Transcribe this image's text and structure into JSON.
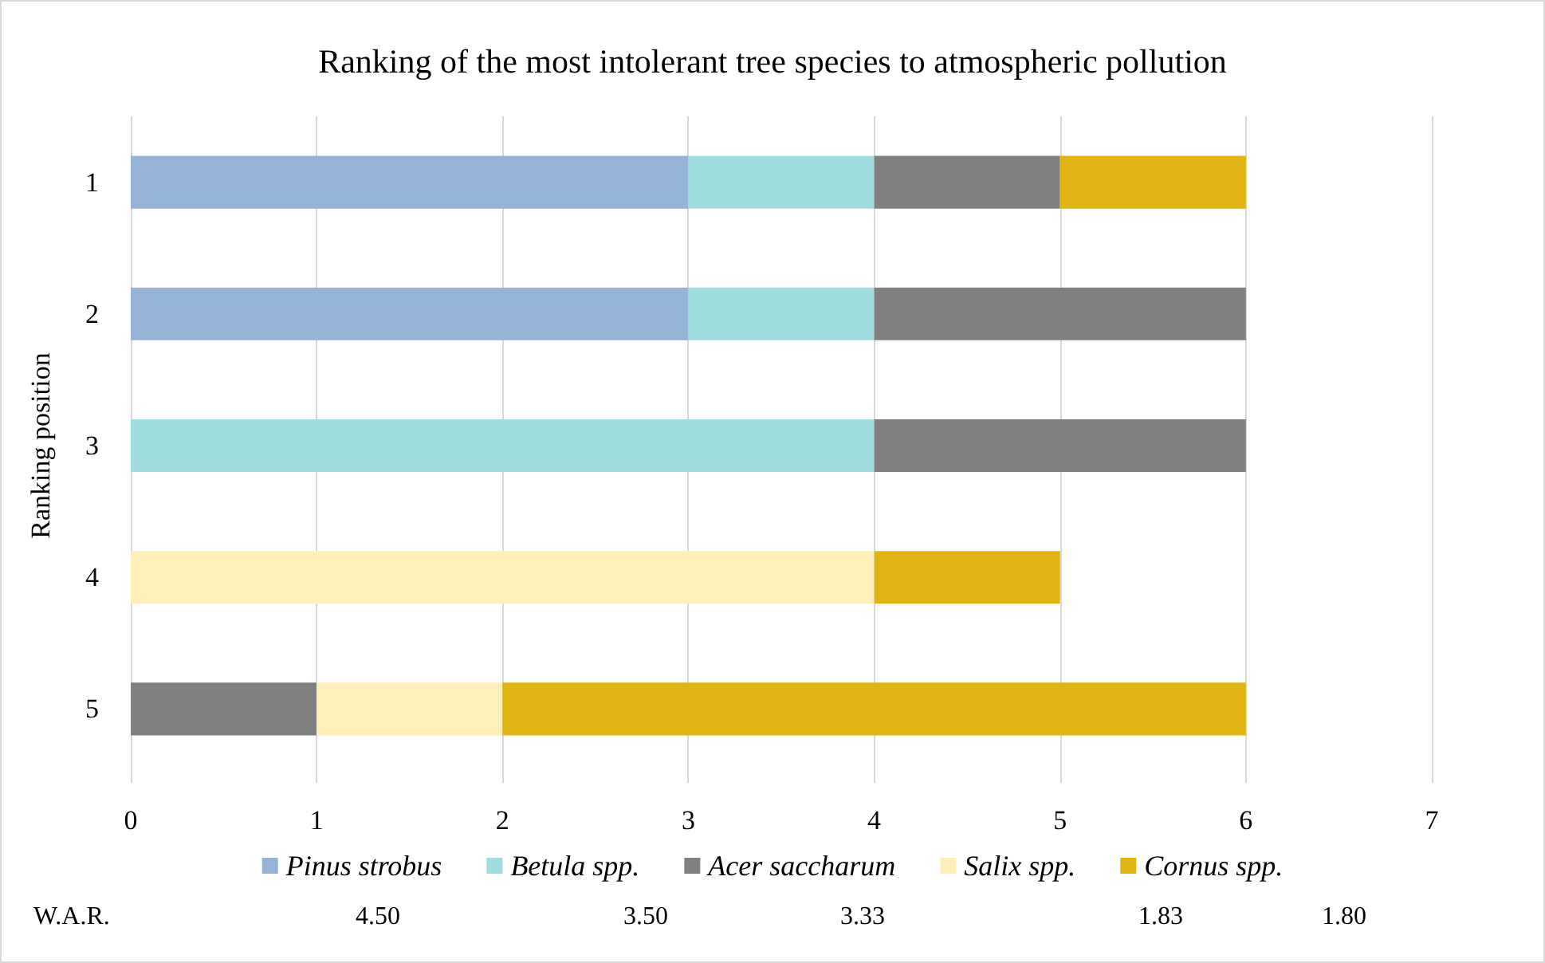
{
  "chart_data": {
    "type": "bar",
    "orientation": "horizontal",
    "stacked": true,
    "title": "Ranking of the most intolerant tree species to atmospheric pollution",
    "ylabel": "Ranking position",
    "categories": [
      "1",
      "2",
      "3",
      "4",
      "5"
    ],
    "series": [
      {
        "name": "Pinus strobus",
        "color": "#95b3d7",
        "values": [
          3,
          3,
          null,
          null,
          null
        ]
      },
      {
        "name": "Betula spp.",
        "color": "#a0dde0",
        "values": [
          1,
          1,
          4,
          null,
          null
        ]
      },
      {
        "name": "Acer saccharum",
        "color": "#808080",
        "values": [
          1,
          2,
          2,
          null,
          1
        ]
      },
      {
        "name": "Salix spp.",
        "color": "#fff0bb",
        "values": [
          null,
          null,
          null,
          4,
          1
        ]
      },
      {
        "name": "Cornus spp.",
        "color": "#e0b412",
        "values": [
          1,
          null,
          null,
          1,
          4
        ]
      }
    ],
    "xlim": [
      0,
      7
    ],
    "xticks": [
      0,
      1,
      2,
      3,
      4,
      5,
      6,
      7
    ],
    "grid": "x",
    "legend": "bottom",
    "annotations": [
      "W.A.R.",
      "4.50",
      "3.50",
      "3.33",
      "1.83",
      "1.80"
    ]
  }
}
